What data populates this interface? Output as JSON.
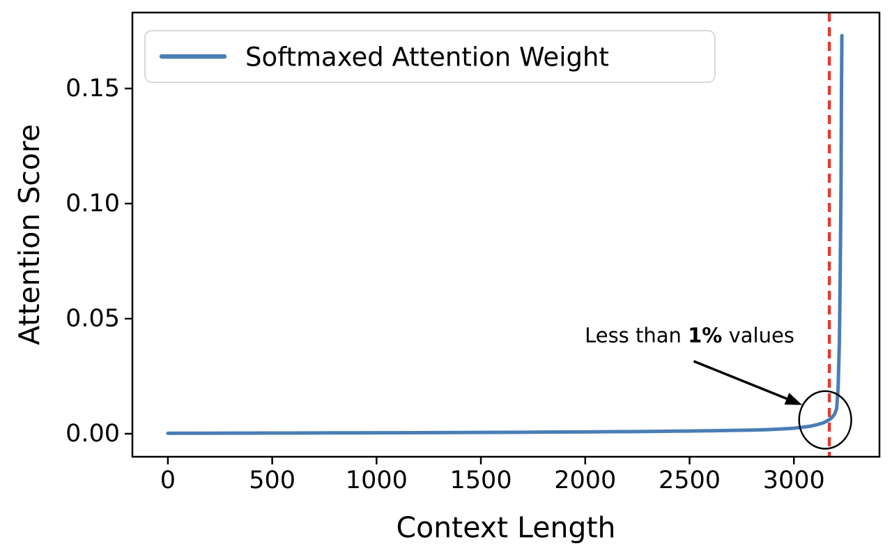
{
  "figure": {
    "background": "#ffffff",
    "axis_color": "#000000"
  },
  "chart_data": {
    "type": "line",
    "title": "",
    "xlabel": "Context Length",
    "ylabel": "Attention Score",
    "xlim": [
      -170,
      3410
    ],
    "ylim": [
      -0.01,
      0.183
    ],
    "x_ticks": [
      0,
      500,
      1000,
      1500,
      2000,
      2500,
      3000
    ],
    "x_tick_labels": [
      "0",
      "500",
      "1000",
      "1500",
      "2000",
      "2500",
      "3000"
    ],
    "y_ticks": [
      0,
      0.05,
      0.1,
      0.15
    ],
    "y_tick_labels": [
      "0.00",
      "0.05",
      "0.10",
      "0.15"
    ],
    "grid": false,
    "legend": {
      "position": "upper left",
      "label": "Softmaxed Attention Weight"
    },
    "series": [
      {
        "name": "Softmaxed Attention Weight",
        "color": "#4a7db5",
        "line_width": 5,
        "x": [
          0,
          100,
          200,
          300,
          400,
          500,
          600,
          700,
          800,
          900,
          1000,
          1100,
          1200,
          1300,
          1400,
          1500,
          1600,
          1700,
          1800,
          1900,
          2000,
          2100,
          2200,
          2300,
          2400,
          2500,
          2600,
          2700,
          2800,
          2850,
          2900,
          2950,
          3000,
          3040,
          3080,
          3110,
          3140,
          3160,
          3180,
          3195,
          3205,
          3212,
          3218,
          3222,
          3226,
          3228,
          3230
        ],
        "y": [
          0.0002,
          0.00022,
          0.00024,
          0.00026,
          0.00028,
          0.0003,
          0.00032,
          0.00034,
          0.00036,
          0.00038,
          0.0004,
          0.00043,
          0.00046,
          0.0005,
          0.00054,
          0.00058,
          0.00062,
          0.00066,
          0.0007,
          0.00075,
          0.0008,
          0.00086,
          0.00092,
          0.001,
          0.00108,
          0.00118,
          0.0013,
          0.00145,
          0.0016,
          0.0017,
          0.0019,
          0.0021,
          0.0024,
          0.0028,
          0.0033,
          0.0039,
          0.0047,
          0.0056,
          0.0068,
          0.0085,
          0.011,
          0.02,
          0.04,
          0.07,
          0.11,
          0.15,
          0.173
        ]
      }
    ],
    "vline": {
      "x": 3170,
      "color": "#e8392e",
      "style": "dashed",
      "dash": [
        13,
        8
      ],
      "width": 4.5
    },
    "annotation": {
      "prefix": "Less than ",
      "bold": "1%",
      "suffix": " values",
      "color": "#000000",
      "text_xy": [
        2500,
        0.0427
      ],
      "arrow_from": [
        2520,
        0.0315
      ],
      "arrow_to": [
        3040,
        0.0125
      ],
      "ellipse": {
        "cx": 3150,
        "cy": 0.006,
        "rx": 125,
        "ry": 0.0125
      }
    }
  }
}
